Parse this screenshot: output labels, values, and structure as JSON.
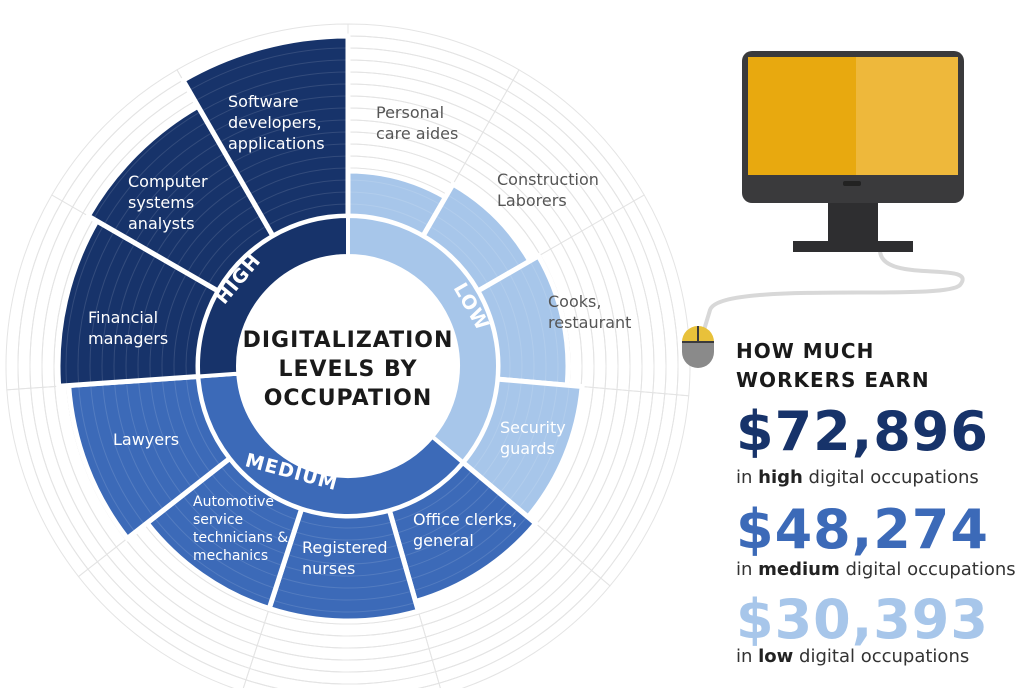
{
  "chart_data": {
    "type": "sunburst",
    "title": "DIGITALIZATION LEVELS BY OCCUPATION",
    "levels": [
      {
        "name": "HIGH",
        "color": "#17336a",
        "occupations": [
          {
            "name": "Software developers, applications"
          },
          {
            "name": "Computer systems analysts"
          },
          {
            "name": "Financial managers"
          }
        ]
      },
      {
        "name": "MEDIUM",
        "color": "#3c6ab8",
        "occupations": [
          {
            "name": "Lawyers"
          },
          {
            "name": "Automotive service technicians & mechanics"
          },
          {
            "name": "Registered nurses"
          },
          {
            "name": "Office clerks, general"
          }
        ]
      },
      {
        "name": "LOW",
        "color": "#a7c6ea",
        "occupations": [
          {
            "name": "Security guards"
          },
          {
            "name": "Cooks, restaurant"
          },
          {
            "name": "Construction Laborers"
          },
          {
            "name": "Personal care aides"
          }
        ]
      }
    ]
  },
  "earnings": {
    "heading_line1": "HOW MUCH",
    "heading_line2": "WORKERS EARN",
    "items": [
      {
        "amount": "$72,896",
        "prefix": "in ",
        "level": "high",
        "suffix": " digital occupations",
        "color": "#17336a"
      },
      {
        "amount": "$48,274",
        "prefix": "in ",
        "level": "medium",
        "suffix": " digital occupations",
        "color": "#3c6ab8"
      },
      {
        "amount": "$30,393",
        "prefix": "in ",
        "level": "low",
        "suffix": " digital occupations",
        "color": "#a7c6ea"
      }
    ]
  },
  "icons": {
    "monitor": "desktop-computer-icon",
    "mouse": "computer-mouse-icon"
  },
  "colors": {
    "screen": "#e8a90f",
    "screen_highlight": "#eeb83b",
    "monitor_body": "#3a3a3c",
    "mouse_top": "#e8c13a",
    "mouse_body": "#8a8a8a"
  }
}
